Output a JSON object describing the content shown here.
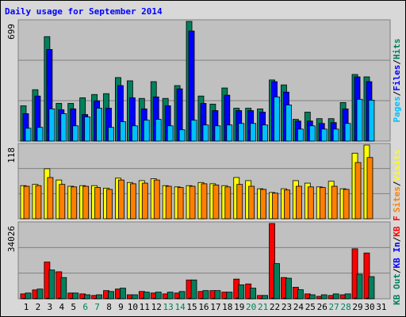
{
  "chart_data": {
    "type": "bar",
    "title": "Daily usage for September 2014",
    "categories": [
      "1",
      "2",
      "3",
      "4",
      "5",
      "6",
      "7",
      "8",
      "9",
      "10",
      "11",
      "12",
      "13",
      "14",
      "15",
      "16",
      "17",
      "18",
      "19",
      "20",
      "21",
      "22",
      "23",
      "24",
      "25",
      "26",
      "27",
      "28",
      "29",
      "30",
      "31"
    ],
    "category_colors": [
      "#000000",
      "#000000",
      "#000000",
      "#000000",
      "#000000",
      "#00805c",
      "#00805c",
      "#000000",
      "#000000",
      "#000000",
      "#000000",
      "#000000",
      "#00805c",
      "#00805c",
      "#000000",
      "#000000",
      "#000000",
      "#000000",
      "#000000",
      "#00805c",
      "#00805c",
      "#000000",
      "#000000",
      "#000000",
      "#000000",
      "#000000",
      "#00805c",
      "#00805c",
      "#000000",
      "#000000",
      "#000000"
    ],
    "legend_separator": "/",
    "panels": [
      {
        "ylim": [
          0,
          699
        ],
        "yticks": [
          699
        ],
        "series": [
          {
            "name": "Hits",
            "color": "#00805c",
            "values": [
              206,
              300,
              610,
              220,
              220,
              253,
              272,
              277,
              371,
              352,
              249,
              347,
              249,
              324,
              699,
              263,
              216,
              310,
              192,
              192,
              188,
              357,
              328,
              127,
              169,
              131,
              131,
              225,
              389,
              375,
              0
            ]
          },
          {
            "name": "Files",
            "color": "#0000ff",
            "values": [
              160,
              263,
              535,
              183,
              188,
              155,
              235,
              192,
              324,
              253,
              188,
              258,
              206,
              305,
              643,
              220,
              178,
              268,
              178,
              178,
              169,
              347,
              286,
              117,
              117,
              103,
              108,
              188,
              375,
              347,
              0
            ]
          },
          {
            "name": "Pages",
            "color": "#00c0ff",
            "values": [
              75,
              80,
              188,
              160,
              89,
              141,
              192,
              80,
              113,
              89,
              122,
              127,
              89,
              66,
              122,
              94,
              89,
              94,
              103,
              103,
              94,
              258,
              211,
              70,
              89,
              70,
              70,
              103,
              244,
              239,
              0
            ]
          }
        ]
      },
      {
        "ylim": [
          0,
          118
        ],
        "yticks": [
          118
        ],
        "series": [
          {
            "name": "Visits",
            "color": "#ffff00",
            "values": [
              53,
              55,
              80,
              62,
              52,
              53,
              53,
              49,
              65,
              58,
              61,
              64,
              53,
              51,
              53,
              58,
              56,
              53,
              66,
              61,
              48,
              42,
              48,
              61,
              57,
              51,
              60,
              48,
              105,
              118,
              0
            ]
          },
          {
            "name": "Sites",
            "color": "#ff8000",
            "values": [
              52,
              53,
              66,
              55,
              51,
              52,
              50,
              47,
              62,
              56,
              57,
              62,
              52,
              50,
              52,
              56,
              54,
              51,
              55,
              52,
              47,
              41,
              46,
              52,
              51,
              50,
              52,
              47,
              90,
              98,
              0
            ]
          }
        ]
      },
      {
        "ylim": [
          0,
          34026
        ],
        "yticks": [
          34026
        ],
        "series": [
          {
            "name": "KB F",
            "color": "#ff0000",
            "values": [
              2200,
              4000,
              16600,
              12200,
              2600,
              2200,
              1500,
              3700,
              4400,
              1800,
              3300,
              2600,
              2200,
              2600,
              8500,
              3300,
              3700,
              3000,
              8900,
              6700,
              1500,
              34026,
              9600,
              5200,
              2200,
              1100,
              1500,
              1800,
              22600,
              20700,
              0
            ]
          },
          {
            "name": "KB In",
            "color": "#0000ff",
            "values": [
              200,
              200,
              300,
              300,
              200,
              200,
              100,
              200,
              200,
              100,
              200,
              200,
              200,
              200,
              300,
              200,
              200,
              200,
              300,
              200,
              100,
              400,
              300,
              200,
              200,
              100,
              100,
              100,
              300,
              300,
              0
            ]
          },
          {
            "name": "KB Out",
            "color": "#00805c",
            "values": [
              2600,
              4400,
              13000,
              9600,
              2600,
              1800,
              1800,
              3300,
              4800,
              1800,
              3000,
              3000,
              3000,
              3300,
              8500,
              3700,
              3700,
              3000,
              6300,
              4800,
              1500,
              15900,
              9300,
              4100,
              1800,
              1800,
              2200,
              2200,
              11100,
              10000,
              0
            ]
          }
        ]
      }
    ]
  }
}
